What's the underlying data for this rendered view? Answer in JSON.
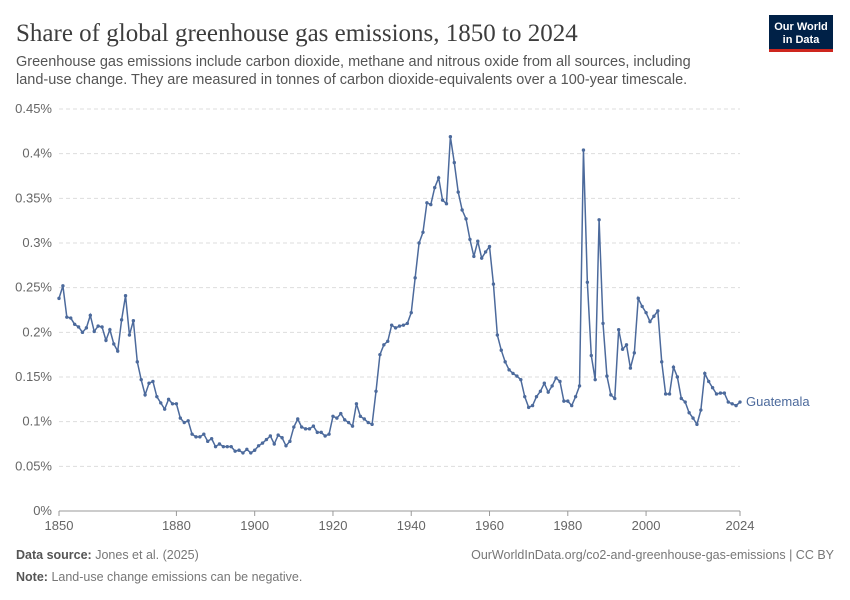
{
  "chart_data": {
    "type": "line",
    "title": "Share of global greenhouse gas emissions, 1850 to 2024",
    "subtitle_lines": [
      "Greenhouse gas emissions include carbon dioxide, methane and nitrous oxide from all sources, including",
      "land-use change. They are measured in tonnes of carbon dioxide-equivalents over a 100-year timescale."
    ],
    "logo_lines": [
      "Our World",
      "in Data"
    ],
    "x": [
      1850,
      1851,
      1852,
      1853,
      1854,
      1855,
      1856,
      1857,
      1858,
      1859,
      1860,
      1861,
      1862,
      1863,
      1864,
      1865,
      1866,
      1867,
      1868,
      1869,
      1870,
      1871,
      1872,
      1873,
      1874,
      1875,
      1876,
      1877,
      1878,
      1879,
      1880,
      1881,
      1882,
      1883,
      1884,
      1885,
      1886,
      1887,
      1888,
      1889,
      1890,
      1891,
      1892,
      1893,
      1894,
      1895,
      1896,
      1897,
      1898,
      1899,
      1900,
      1901,
      1902,
      1903,
      1904,
      1905,
      1906,
      1907,
      1908,
      1909,
      1910,
      1911,
      1912,
      1913,
      1914,
      1915,
      1916,
      1917,
      1918,
      1919,
      1920,
      1921,
      1922,
      1923,
      1924,
      1925,
      1926,
      1927,
      1928,
      1929,
      1930,
      1931,
      1932,
      1933,
      1934,
      1935,
      1936,
      1937,
      1938,
      1939,
      1940,
      1941,
      1942,
      1943,
      1944,
      1945,
      1946,
      1947,
      1948,
      1949,
      1950,
      1951,
      1952,
      1953,
      1954,
      1955,
      1956,
      1957,
      1958,
      1959,
      1960,
      1961,
      1962,
      1963,
      1964,
      1965,
      1966,
      1967,
      1968,
      1969,
      1970,
      1971,
      1972,
      1973,
      1974,
      1975,
      1976,
      1977,
      1978,
      1979,
      1980,
      1981,
      1982,
      1983,
      1984,
      1985,
      1986,
      1987,
      1988,
      1989,
      1990,
      1991,
      1992,
      1993,
      1994,
      1995,
      1996,
      1997,
      1998,
      1999,
      2000,
      2001,
      2002,
      2003,
      2004,
      2005,
      2006,
      2007,
      2008,
      2009,
      2010,
      2011,
      2012,
      2013,
      2014,
      2015,
      2016,
      2017,
      2018,
      2019,
      2020,
      2021,
      2022,
      2023,
      2024
    ],
    "series": [
      {
        "name": "Guatemala",
        "color": "#4c6a9c",
        "values": [
          0.238,
          0.252,
          0.217,
          0.216,
          0.209,
          0.206,
          0.2,
          0.205,
          0.219,
          0.201,
          0.207,
          0.206,
          0.191,
          0.203,
          0.187,
          0.179,
          0.214,
          0.241,
          0.197,
          0.213,
          0.167,
          0.147,
          0.13,
          0.143,
          0.145,
          0.128,
          0.121,
          0.114,
          0.125,
          0.12,
          0.12,
          0.104,
          0.099,
          0.101,
          0.086,
          0.083,
          0.083,
          0.086,
          0.078,
          0.081,
          0.072,
          0.075,
          0.072,
          0.072,
          0.072,
          0.067,
          0.068,
          0.065,
          0.069,
          0.065,
          0.068,
          0.073,
          0.076,
          0.08,
          0.084,
          0.075,
          0.085,
          0.082,
          0.073,
          0.078,
          0.094,
          0.103,
          0.094,
          0.092,
          0.092,
          0.095,
          0.088,
          0.088,
          0.084,
          0.086,
          0.106,
          0.104,
          0.109,
          0.102,
          0.099,
          0.095,
          0.12,
          0.106,
          0.103,
          0.099,
          0.097,
          0.134,
          0.175,
          0.186,
          0.19,
          0.208,
          0.205,
          0.207,
          0.208,
          0.21,
          0.222,
          0.261,
          0.3,
          0.312,
          0.345,
          0.343,
          0.362,
          0.373,
          0.348,
          0.344,
          0.419,
          0.39,
          0.357,
          0.337,
          0.327,
          0.304,
          0.285,
          0.302,
          0.283,
          0.29,
          0.296,
          0.254,
          0.197,
          0.18,
          0.167,
          0.158,
          0.154,
          0.151,
          0.147,
          0.128,
          0.116,
          0.118,
          0.128,
          0.134,
          0.143,
          0.133,
          0.14,
          0.149,
          0.145,
          0.123,
          0.123,
          0.118,
          0.128,
          0.14,
          0.404,
          0.256,
          0.174,
          0.147,
          0.326,
          0.21,
          0.151,
          0.13,
          0.126,
          0.203,
          0.181,
          0.186,
          0.16,
          0.177,
          0.238,
          0.229,
          0.222,
          0.212,
          0.218,
          0.224,
          0.167,
          0.131,
          0.131,
          0.161,
          0.15,
          0.126,
          0.122,
          0.11,
          0.104,
          0.097,
          0.113,
          0.154,
          0.145,
          0.138,
          0.131,
          0.132,
          0.132,
          0.122,
          0.12,
          0.118,
          0.122
        ]
      }
    ],
    "xlim": [
      1850,
      2024
    ],
    "xticks": [
      1850,
      1880,
      1900,
      1920,
      1940,
      1960,
      1980,
      2000,
      2024
    ],
    "ylim": [
      0,
      0.45
    ],
    "yticks": [
      {
        "value": 0,
        "label": "0%"
      },
      {
        "value": 0.05,
        "label": "0.05%"
      },
      {
        "value": 0.1,
        "label": "0.1%"
      },
      {
        "value": 0.15,
        "label": "0.15%"
      },
      {
        "value": 0.2,
        "label": "0.2%"
      },
      {
        "value": 0.25,
        "label": "0.25%"
      },
      {
        "value": 0.3,
        "label": "0.3%"
      },
      {
        "value": 0.35,
        "label": "0.35%"
      },
      {
        "value": 0.4,
        "label": "0.4%"
      },
      {
        "value": 0.45,
        "label": "0.45%"
      }
    ],
    "grid": true,
    "footer": {
      "source_label": "Data source:",
      "source": "Jones et al. (2025)",
      "url": "OurWorldInData.org/co2-and-greenhouse-gas-emissions | CC BY",
      "note_label": "Note:",
      "note": "Land-use change emissions can be negative."
    }
  }
}
